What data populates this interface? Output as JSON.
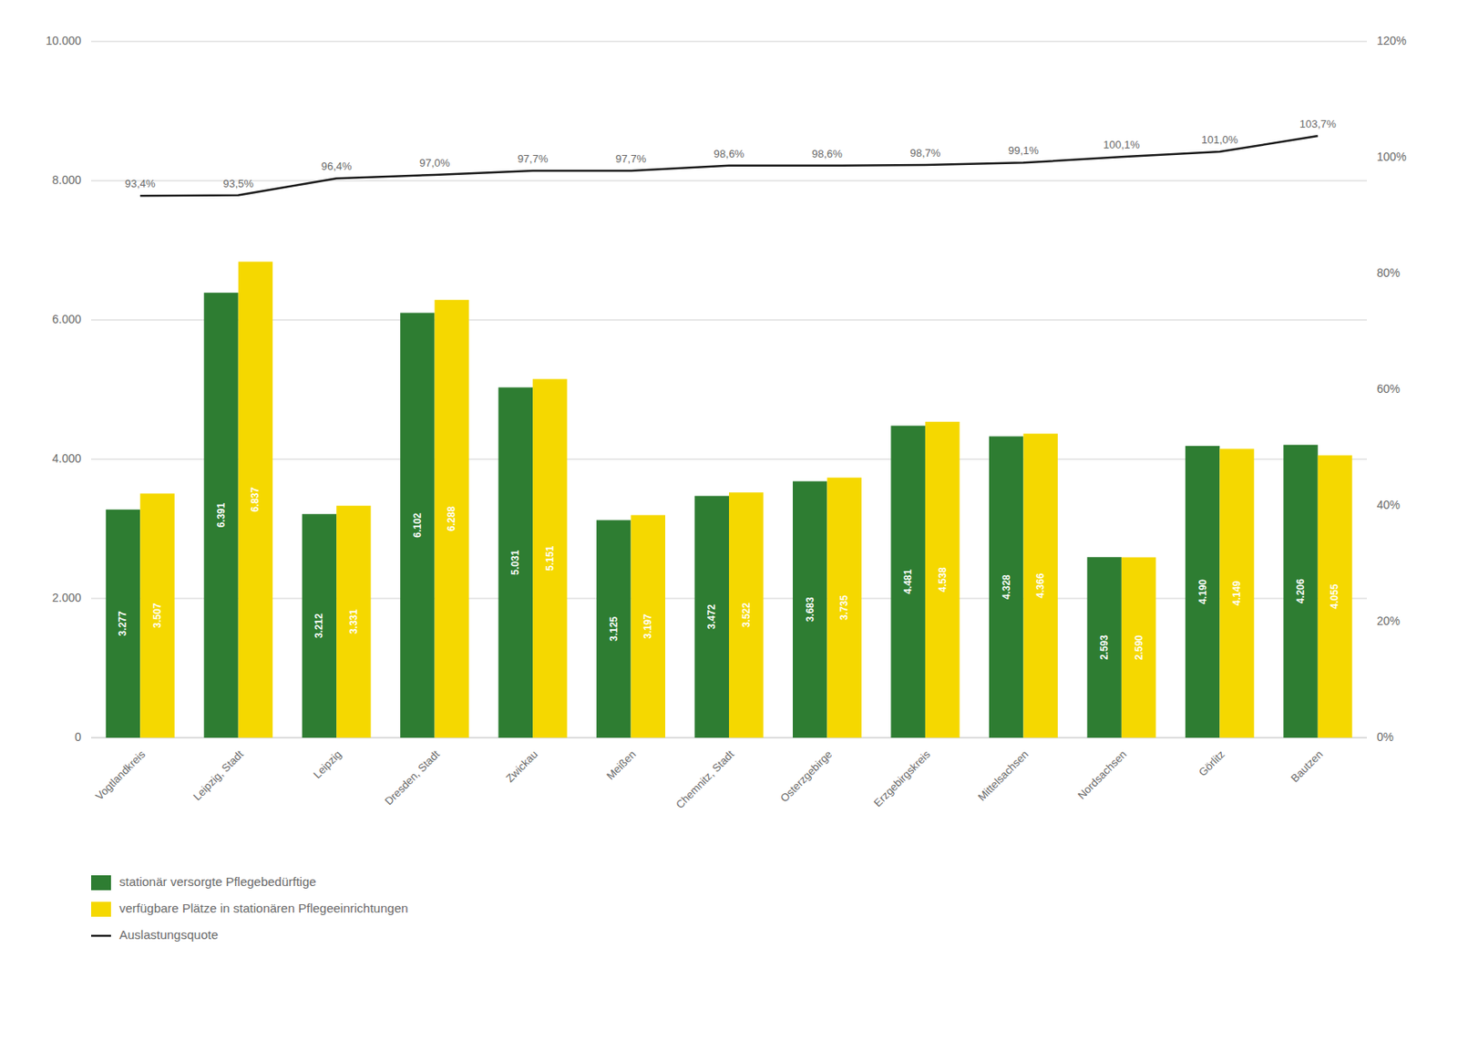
{
  "chart_data": {
    "type": "bar",
    "categories": [
      "Vogtlandkreis",
      "Leipzig, Stadt",
      "Leipzig",
      "Dresden, Stadt",
      "Zwickau",
      "Meißen",
      "Chemnitz, Stadt",
      "Osterzgebirge",
      "Erzgebirgskreis",
      "Mittelsachsen",
      "Nordsachsen",
      "Görlitz",
      "Bautzen"
    ],
    "series": [
      {
        "name": "stationär versorgte Pflegebedürftige",
        "color": "#2e7d32",
        "values": [
          3277,
          6391,
          3212,
          6102,
          5031,
          3125,
          3472,
          3683,
          4481,
          4328,
          2593,
          4190,
          4206
        ],
        "value_labels": [
          "3.277",
          "6.391",
          "3.212",
          "6.102",
          "5.031",
          "3.125",
          "3.472",
          "3.683",
          "4.481",
          "4.328",
          "2.593",
          "4.190",
          "4.206"
        ]
      },
      {
        "name": "verfügbare Plätze in stationären Pflegeeinrichtungen",
        "color": "#f5d800",
        "values": [
          3507,
          6837,
          3331,
          6288,
          5151,
          3197,
          3522,
          3735,
          4538,
          4366,
          2590,
          4149,
          4055
        ],
        "value_labels": [
          "3.507",
          "6.837",
          "3.331",
          "6.288",
          "5.151",
          "3.197",
          "3.522",
          "3.735",
          "4.538",
          "4.366",
          "2.590",
          "4.149",
          "4.055"
        ]
      },
      {
        "name": "Auslastungsquote",
        "type": "line",
        "axis": "y2",
        "color": "#1a1a1a",
        "values": [
          93.4,
          93.5,
          96.4,
          97.0,
          97.7,
          97.7,
          98.6,
          98.6,
          98.7,
          99.1,
          100.1,
          101.0,
          103.7
        ],
        "value_labels": [
          "93,4%",
          "93,5%",
          "96,4%",
          "97,0%",
          "97,7%",
          "97,7%",
          "98,6%",
          "98,6%",
          "98,7%",
          "99,1%",
          "100,1%",
          "101,0%",
          "103,7%"
        ]
      }
    ],
    "ylim": [
      0,
      10000
    ],
    "yticks": [
      0,
      {
        "value": 2000,
        "label": "2.000"
      },
      {
        "value": 4000,
        "label": "4.000"
      },
      {
        "value": 6000,
        "label": "6.000"
      },
      {
        "value": 8000,
        "label": "8.000"
      },
      {
        "value": 10000,
        "label": "10.000"
      }
    ],
    "y2lim": [
      0,
      120
    ],
    "y2ticks": [
      {
        "value": 0,
        "label": "0%"
      },
      {
        "value": 20,
        "label": "20%"
      },
      {
        "value": 40,
        "label": "40%"
      },
      {
        "value": 60,
        "label": "60%"
      },
      {
        "value": 80,
        "label": "80%"
      },
      {
        "value": 100,
        "label": "100%"
      },
      {
        "value": 120,
        "label": "120%"
      }
    ],
    "grid": true,
    "legend": "bottom",
    "data_labels": true
  }
}
